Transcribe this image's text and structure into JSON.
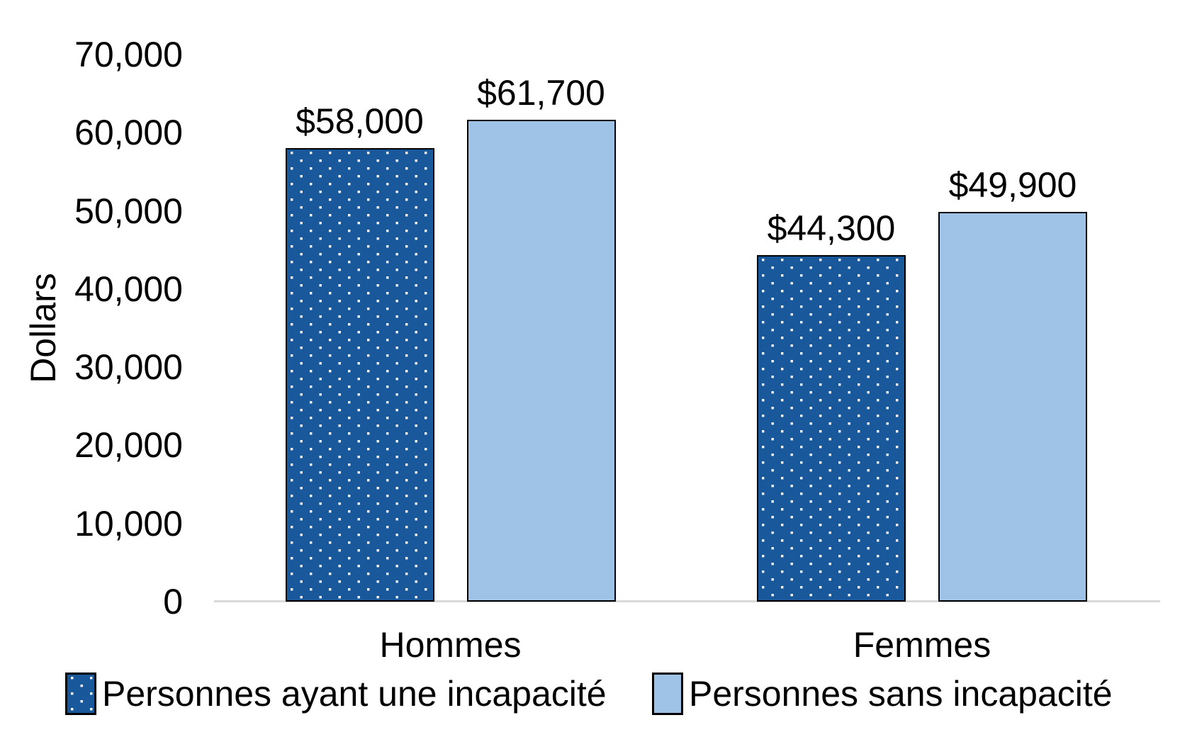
{
  "chart_data": {
    "type": "bar",
    "title": "",
    "xlabel": "",
    "ylabel": "Dollars",
    "categories": [
      "Hommes",
      "Femmes"
    ],
    "series": [
      {
        "name": "Personnes ayant une incapacité",
        "fill": "dotted",
        "color": "#19599B",
        "dot_color": "#FFFFFF",
        "values": [
          58000,
          44300
        ],
        "data_labels": [
          "$58,000",
          "$44,300"
        ]
      },
      {
        "name": "Personnes sans incapacité",
        "fill": "solid",
        "color": "#9EC3E6",
        "values": [
          61700,
          49900
        ],
        "data_labels": [
          "$61,700",
          "$49,900"
        ]
      }
    ],
    "ylim": [
      0,
      70000
    ],
    "yticks": [
      "0",
      "10,000",
      "20,000",
      "30,000",
      "40,000",
      "50,000",
      "60,000",
      "70,000"
    ],
    "grid": false,
    "legend_position": "bottom",
    "axis_line_color": "#D9D9D9",
    "bar_border_color": "#000000",
    "text_color": "#000000"
  }
}
